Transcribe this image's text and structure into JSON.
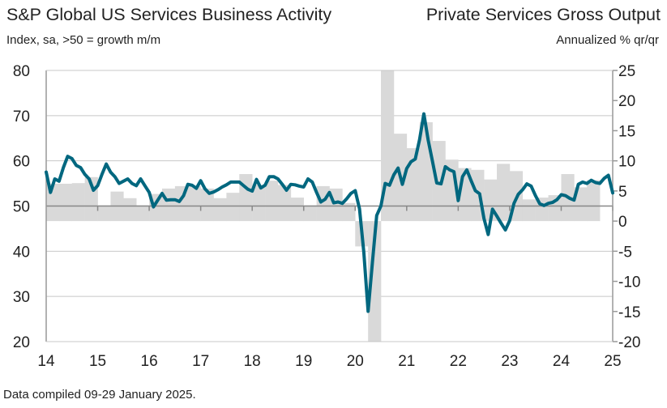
{
  "chart_data": {
    "type": "bar+line",
    "title_left": "S&P Global US Services Business Activity",
    "subtitle_left": "Index, sa, >50 = growth m/m",
    "title_right": "Private Services Gross Output",
    "subtitle_right": "Annualized % qr/qr",
    "footer": "Data compiled 09-29 January 2025.",
    "x_ticks": [
      "14",
      "15",
      "16",
      "17",
      "18",
      "19",
      "20",
      "21",
      "22",
      "23",
      "24",
      "25"
    ],
    "y_left": {
      "range": [
        20,
        80
      ],
      "ticks": [
        "80",
        "70",
        "60",
        "50",
        "40",
        "30",
        "20"
      ]
    },
    "y_right": {
      "range": [
        -20,
        25
      ],
      "ticks": [
        "25",
        "20",
        "15",
        "10",
        "5",
        "0",
        "-5",
        "-10",
        "-15",
        "-20"
      ]
    },
    "grid": true,
    "colors": {
      "line": "#00677f",
      "bars": "#d9d9d9"
    },
    "line_series": {
      "axis": "left",
      "start": "2014-01",
      "frequency": "monthly",
      "values": [
        57.5,
        53.0,
        56.0,
        55.5,
        58.5,
        61.0,
        60.5,
        59.0,
        58.5,
        57.0,
        56.0,
        53.5,
        54.5,
        57.0,
        59.3,
        57.5,
        56.5,
        55.0,
        55.5,
        56.0,
        55.0,
        54.5,
        56.0,
        54.5,
        53.0,
        49.8,
        51.3,
        52.8,
        51.3,
        51.4,
        51.4,
        51.0,
        52.3,
        54.8,
        54.6,
        53.9,
        55.6,
        53.8,
        52.8,
        53.1,
        53.6,
        54.2,
        54.7,
        55.3,
        55.3,
        55.3,
        54.5,
        53.7,
        53.3,
        55.9,
        54.0,
        54.6,
        56.5,
        56.5,
        56.0,
        54.8,
        53.5,
        54.8,
        54.7,
        54.4,
        54.2,
        56.0,
        55.3,
        53.0,
        50.9,
        51.5,
        53.0,
        50.7,
        50.9,
        50.6,
        51.6,
        52.8,
        53.4,
        49.4,
        39.8,
        26.7,
        37.5,
        47.9,
        50.0,
        55.0,
        54.6,
        56.9,
        58.4,
        54.8,
        58.3,
        59.8,
        60.4,
        64.7,
        70.4,
        64.6,
        59.9,
        55.1,
        54.9,
        58.7,
        58.0,
        57.6,
        51.2,
        56.5,
        58.0,
        55.6,
        53.4,
        52.7,
        47.3,
        43.7,
        49.3,
        47.8,
        46.2,
        44.7,
        46.8,
        50.6,
        52.6,
        53.6,
        54.9,
        54.4,
        52.3,
        50.5,
        50.1,
        50.6,
        50.8,
        51.4,
        52.5,
        52.3,
        51.7,
        51.3,
        54.8,
        55.3,
        55.0,
        55.7,
        55.2,
        55.0,
        56.1,
        56.8,
        52.9
      ]
    },
    "bar_series": {
      "axis": "right",
      "start": "2014-Q1",
      "frequency": "quarterly",
      "values": [
        6.2,
        6.2,
        6.3,
        7.3,
        2.6,
        4.9,
        3.8,
        2.6,
        4.5,
        5.4,
        5.8,
        5.8,
        5.4,
        3.8,
        4.7,
        7.8,
        6.0,
        6.7,
        6.0,
        3.9,
        2.6,
        5.8,
        5.4,
        3.0,
        -4.2,
        -20,
        25,
        14.5,
        12.1,
        16.4,
        13.3,
        10.2,
        8.8,
        8.5,
        6.9,
        9.5,
        8.3,
        3.6,
        3.9,
        4.3,
        7.8,
        5.6,
        6.8
      ]
    }
  }
}
